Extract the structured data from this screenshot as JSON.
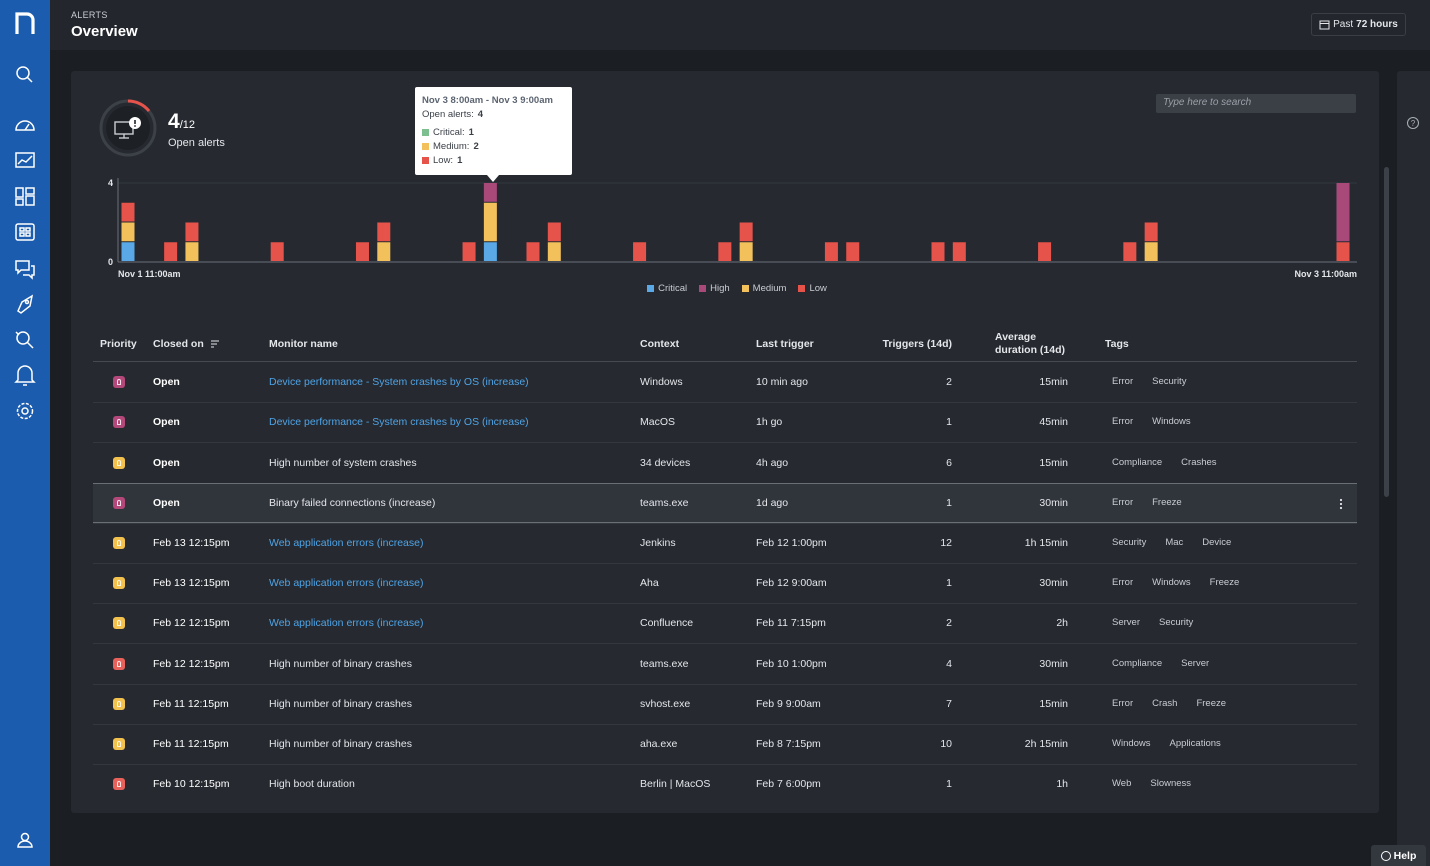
{
  "header": {
    "section": "ALERTS",
    "title": "Overview",
    "range_prefix": "Past",
    "range_value": "72 hours"
  },
  "summary": {
    "count": 4,
    "total": "/12",
    "label": "Open alerts"
  },
  "search_placeholder": "Type here to search",
  "chart_data": {
    "type": "bar",
    "stacked": true,
    "categories": [
      "Nov 1 11:00am",
      null,
      null,
      null,
      null,
      null,
      null,
      null,
      null,
      null,
      null,
      null,
      null,
      null,
      null,
      null,
      null,
      null,
      null,
      null,
      null,
      null,
      null,
      null,
      null,
      null,
      null,
      null,
      null,
      null,
      null,
      null,
      null,
      null,
      null,
      null,
      null,
      null,
      null,
      null,
      null,
      null,
      null,
      null,
      null,
      null,
      null,
      null,
      null,
      null,
      null,
      null,
      null,
      null,
      null,
      null,
      null,
      "Nov 3 11:00am"
    ],
    "series": [
      {
        "name": "Critical",
        "color": "#5aa9e6",
        "values": [
          1,
          0,
          0,
          0,
          0,
          0,
          0,
          0,
          0,
          0,
          0,
          0,
          0,
          0,
          0,
          0,
          0,
          1,
          0,
          0,
          0,
          0,
          0,
          0,
          0,
          0,
          0,
          0,
          0,
          0,
          0,
          0,
          0,
          0,
          0,
          0,
          0,
          0,
          0,
          0,
          0,
          0,
          0,
          0,
          0,
          0,
          0,
          0,
          0,
          0,
          0,
          0,
          0,
          0,
          0,
          0,
          0,
          0
        ]
      },
      {
        "name": "High",
        "color": "#a8497a",
        "values": [
          0,
          0,
          0,
          0,
          0,
          0,
          0,
          0,
          0,
          0,
          0,
          0,
          0,
          0,
          0,
          0,
          0,
          1,
          0,
          0,
          0,
          0,
          0,
          0,
          0,
          0,
          0,
          0,
          0,
          0,
          0,
          0,
          0,
          0,
          0,
          0,
          0,
          0,
          0,
          0,
          0,
          0,
          0,
          0,
          0,
          0,
          0,
          0,
          0,
          0,
          0,
          0,
          0,
          0,
          0,
          0,
          0,
          3
        ]
      },
      {
        "name": "Medium",
        "color": "#f3c15b",
        "values": [
          1,
          0,
          0,
          1,
          0,
          0,
          0,
          0,
          0,
          0,
          0,
          0,
          1,
          0,
          0,
          0,
          0,
          2,
          0,
          0,
          1,
          0,
          0,
          0,
          0,
          0,
          0,
          0,
          0,
          1,
          0,
          0,
          0,
          0,
          0,
          0,
          0,
          0,
          0,
          0,
          0,
          0,
          0,
          0,
          0,
          0,
          0,
          0,
          1,
          0,
          0,
          0,
          0,
          0,
          0,
          0,
          0,
          0
        ]
      },
      {
        "name": "Low",
        "color": "#e5534b",
        "values": [
          1,
          0,
          1,
          1,
          0,
          0,
          0,
          1,
          0,
          0,
          0,
          1,
          1,
          0,
          0,
          0,
          1,
          0,
          0,
          1,
          1,
          0,
          0,
          0,
          1,
          0,
          0,
          0,
          1,
          1,
          0,
          0,
          0,
          1,
          1,
          0,
          0,
          0,
          1,
          1,
          0,
          0,
          0,
          1,
          0,
          0,
          0,
          1,
          1,
          0,
          0,
          0,
          0,
          0,
          0,
          0,
          0,
          1
        ]
      }
    ],
    "ylim": [
      0,
      4
    ],
    "yticks": [
      0,
      4
    ],
    "grid": true
  },
  "tooltip": {
    "title": "Nov 3 8:00am - Nov 3 9:00am",
    "open_label": "Open alerts:",
    "open_value": 4,
    "rows": [
      {
        "label": "Critical:",
        "value": 1,
        "color": "#7dbf8e"
      },
      {
        "label": "Medium:",
        "value": 2,
        "color": "#f3c15b"
      },
      {
        "label": "Low:",
        "value": 1,
        "color": "#e5534b"
      }
    ]
  },
  "table": {
    "columns": [
      "Priority",
      "Closed on",
      "Monitor name",
      "Context",
      "Last trigger",
      "Triggers (14d)",
      "Average duration (14d)",
      "Tags"
    ],
    "rows": [
      {
        "priority_color": "#b5487a",
        "closed": "Open",
        "monitor": "Device performance - System crashes by OS (increase)",
        "link": true,
        "context": "Windows",
        "last": "10 min ago",
        "triggers": 2,
        "duration": "15min",
        "tags": [
          "Error",
          "Security"
        ]
      },
      {
        "priority_color": "#b5487a",
        "closed": "Open",
        "monitor": "Device performance - System crashes by OS (increase)",
        "link": true,
        "context": "MacOS",
        "last": "1h go",
        "triggers": 1,
        "duration": "45min",
        "tags": [
          "Error",
          "Windows"
        ]
      },
      {
        "priority_color": "#f2c14e",
        "closed": "Open",
        "monitor": "High number of system crashes",
        "link": false,
        "context": "34 devices",
        "last": "4h ago",
        "triggers": 6,
        "duration": "15min",
        "tags": [
          "Compliance",
          "Crashes"
        ]
      },
      {
        "priority_color": "#b5487a",
        "closed": "Open",
        "monitor": "Binary failed connections (increase)",
        "link": false,
        "highlighted": true,
        "context": "teams.exe",
        "last": "1d ago",
        "triggers": 1,
        "duration": "30min",
        "tags": [
          "Error",
          "Freeze"
        ]
      },
      {
        "priority_color": "#f2c14e",
        "closed": "Feb 13 12:15pm",
        "monitor": "Web application errors (increase)",
        "link": true,
        "context": "Jenkins",
        "last": "Feb 12 1:00pm",
        "triggers": 12,
        "duration": "1h 15min",
        "tags": [
          "Security",
          "Mac",
          "Device"
        ]
      },
      {
        "priority_color": "#f2c14e",
        "closed": "Feb 13 12:15pm",
        "monitor": "Web application errors (increase)",
        "link": true,
        "context": "Aha",
        "last": "Feb 12 9:00am",
        "triggers": 1,
        "duration": "30min",
        "tags": [
          "Error",
          "Windows",
          "Freeze"
        ]
      },
      {
        "priority_color": "#f2c14e",
        "closed": "Feb 12 12:15pm",
        "monitor": "Web application errors (increase)",
        "link": true,
        "context": "Confluence",
        "last": "Feb 11 7:15pm",
        "triggers": 2,
        "duration": "2h",
        "tags": [
          "Server",
          "Security"
        ]
      },
      {
        "priority_color": "#e8615a",
        "closed": "Feb 12 12:15pm",
        "monitor": "High number of binary crashes",
        "link": false,
        "context": "teams.exe",
        "last": "Feb 10 1:00pm",
        "triggers": 4,
        "duration": "30min",
        "tags": [
          "Compliance",
          "Server"
        ]
      },
      {
        "priority_color": "#f2c14e",
        "closed": "Feb 11 12:15pm",
        "monitor": "High number of binary crashes",
        "link": false,
        "context": "svhost.exe",
        "last": "Feb 9 9:00am",
        "triggers": 7,
        "duration": "15min",
        "tags": [
          "Error",
          "Crash",
          "Freeze"
        ]
      },
      {
        "priority_color": "#f2c14e",
        "closed": "Feb 11 12:15pm",
        "monitor": "High number of binary crashes",
        "link": false,
        "context": "aha.exe",
        "last": "Feb 8 7:15pm",
        "triggers": 10,
        "duration": "2h 15min",
        "tags": [
          "Windows",
          "Applications"
        ]
      },
      {
        "priority_color": "#e8615a",
        "closed": "Feb 10 12:15pm",
        "monitor": "High boot duration",
        "link": false,
        "context": "Berlin | MacOS",
        "last": "Feb 7 6:00pm",
        "triggers": 1,
        "duration": "1h",
        "tags": [
          "Web",
          "Slowness"
        ]
      }
    ]
  },
  "help": "Help"
}
